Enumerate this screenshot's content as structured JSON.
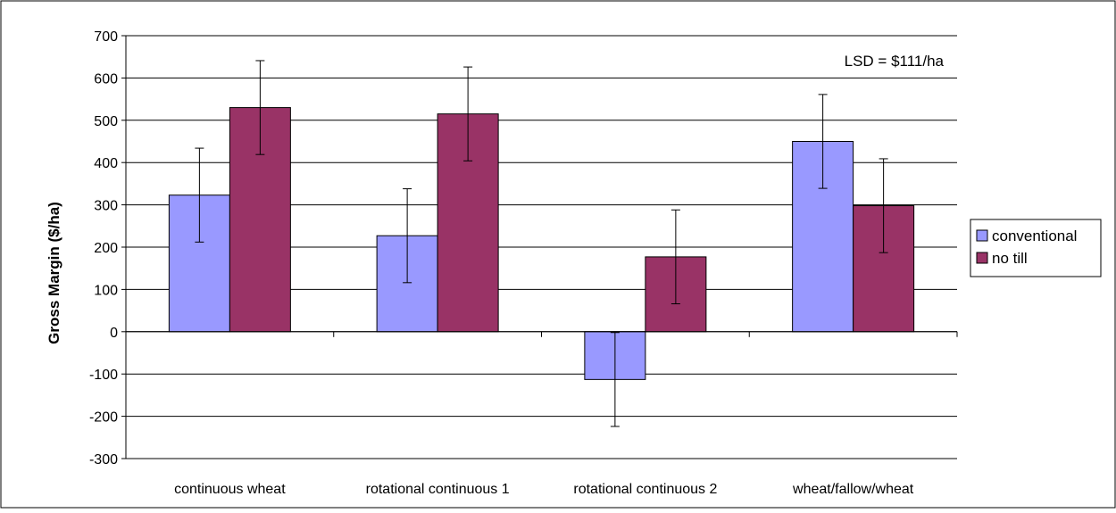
{
  "chart_data": {
    "type": "bar",
    "title": "",
    "xlabel": "",
    "ylabel": "Gross Margin ($/ha)",
    "ylim": [
      -300,
      700
    ],
    "yticks": [
      -300,
      -200,
      -100,
      0,
      100,
      200,
      300,
      400,
      500,
      600,
      700
    ],
    "grid": true,
    "legend_position": "right",
    "annotation": "LSD = $111/ha",
    "categories": [
      "continuous wheat",
      "rotational continuous 1",
      "rotational continuous 2",
      "wheat/fallow/wheat"
    ],
    "series": [
      {
        "name": "conventional",
        "color": "#9999ff",
        "values": [
          323,
          227,
          -113,
          450
        ],
        "errors": [
          111,
          111,
          111,
          111
        ]
      },
      {
        "name": "no till",
        "color": "#993366",
        "values": [
          530,
          515,
          177,
          298
        ],
        "errors": [
          111,
          111,
          111,
          111
        ]
      }
    ]
  }
}
